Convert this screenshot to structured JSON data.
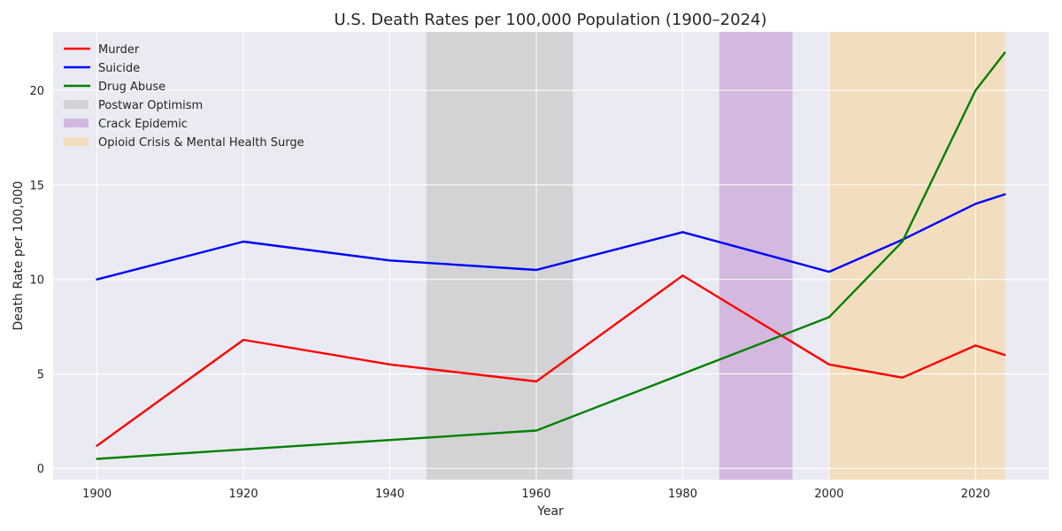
{
  "chart_data": {
    "type": "line",
    "title": "U.S. Death Rates per 100,000 Population (1900–2024)",
    "xlabel": "Year",
    "ylabel": "Death Rate per 100,000",
    "xlim": [
      1894,
      2030
    ],
    "ylim": [
      -0.6,
      23.1
    ],
    "xticks": [
      1900,
      1920,
      1940,
      1960,
      1980,
      2000,
      2020
    ],
    "yticks": [
      0,
      5,
      10,
      15,
      20
    ],
    "grid": true,
    "legend_position": "top-left",
    "series": [
      {
        "name": "Murder",
        "color": "#ff0000",
        "x": [
          1900,
          1920,
          1940,
          1960,
          1980,
          2000,
          2010,
          2020,
          2024
        ],
        "y": [
          1.2,
          6.8,
          5.5,
          4.6,
          10.2,
          5.5,
          4.8,
          6.5,
          6.0
        ]
      },
      {
        "name": "Suicide",
        "color": "#0000ff",
        "x": [
          1900,
          1920,
          1940,
          1960,
          1980,
          2000,
          2010,
          2020,
          2024
        ],
        "y": [
          10.0,
          12.0,
          11.0,
          10.5,
          12.5,
          10.4,
          12.1,
          14.0,
          14.5
        ]
      },
      {
        "name": "Drug Abuse",
        "color": "#008000",
        "x": [
          1900,
          1920,
          1940,
          1960,
          1980,
          2000,
          2010,
          2020,
          2024
        ],
        "y": [
          0.5,
          1.0,
          1.5,
          2.0,
          5.0,
          8.0,
          12.0,
          20.0,
          22.0
        ]
      }
    ],
    "spans": [
      {
        "name": "Postwar Optimism",
        "start": 1945,
        "end": 1965,
        "color": "#c0c0c0",
        "opacity": 0.55
      },
      {
        "name": "Crack Epidemic",
        "start": 1985,
        "end": 1995,
        "color": "#c08fd0",
        "opacity": 0.55
      },
      {
        "name": "Opioid Crisis & Mental Health Surge",
        "start": 2000,
        "end": 2024,
        "color": "#f5d9a8",
        "opacity": 0.7
      }
    ],
    "background_color": "#eaeaf2"
  }
}
